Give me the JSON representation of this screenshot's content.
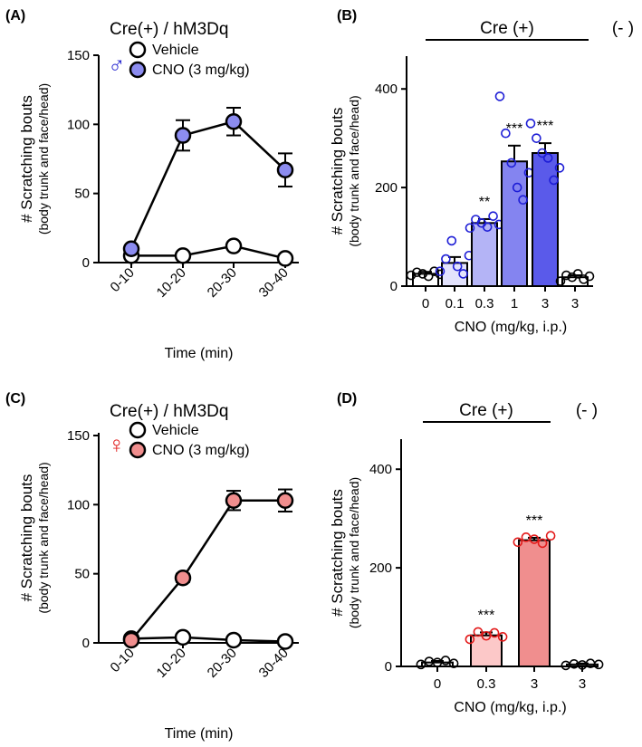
{
  "colors": {
    "male_accent": "#2a2ad0",
    "female_accent": "#e02020",
    "male_fill": "#8c8cf0",
    "female_fill": "#f08e8e",
    "vehicle_fill": "#ffffff",
    "male_points": "#1e1ed6",
    "female_points": "#e31a1a"
  },
  "chart_data": [
    {
      "panel": "(A)",
      "type": "line",
      "title": "Cre(+) / hM3Dq",
      "sex_symbol": "♂",
      "xlabel": "Time (min)",
      "ylabel": "# Scratching bouts",
      "ylabel_sub": "(body trunk and face/head)",
      "ylim": [
        0,
        150
      ],
      "yticks": [
        "0",
        "50",
        "100",
        "150"
      ],
      "categories": [
        "0-10",
        "10-20",
        "20-30",
        "30-40"
      ],
      "series": [
        {
          "name": "Vehicle",
          "values": [
            5,
            5,
            12,
            3
          ],
          "errors": [
            0,
            0,
            0,
            0
          ],
          "fill": "vehicle_fill"
        },
        {
          "name": "CNO (3 mg/kg)",
          "values": [
            10,
            92,
            102,
            67
          ],
          "errors": [
            0,
            11,
            10,
            12
          ],
          "fill": "male_fill"
        }
      ]
    },
    {
      "panel": "(B)",
      "type": "bar",
      "xlabel": "CNO (mg/kg, i.p.)",
      "ylabel": "# Scratching bouts",
      "ylabel_sub": "(body trunk and face/head)",
      "ylim": [
        0,
        450
      ],
      "yticks": [
        "0",
        "200",
        "400"
      ],
      "group_pos": "Cre (+)",
      "group_neg": "(- )",
      "categories": [
        "0",
        "0.1",
        "0.3",
        "1",
        "3",
        "3"
      ],
      "values": [
        25,
        47,
        128,
        253,
        270,
        18
      ],
      "errors": [
        4,
        12,
        8,
        32,
        20,
        4
      ],
      "fills": [
        "#ffffff",
        "#e2e2fc",
        "#b4b4f6",
        "#8484f0",
        "#5a5aea",
        "#ffffff"
      ],
      "significance": [
        "",
        "",
        "**",
        "***",
        "***",
        ""
      ],
      "points": [
        [
          22,
          28,
          25,
          20,
          30,
          24
        ],
        [
          30,
          55,
          92,
          40,
          25,
          62
        ],
        [
          118,
          135,
          128,
          120,
          142,
          125
        ],
        [
          385,
          310,
          250,
          200,
          175,
          230
        ],
        [
          330,
          300,
          270,
          260,
          215,
          240
        ],
        [
          10,
          22,
          18,
          25,
          14,
          20
        ]
      ]
    },
    {
      "panel": "(C)",
      "type": "line",
      "title": "Cre(+) / hM3Dq",
      "sex_symbol": "♀",
      "xlabel": "Time (min)",
      "ylabel": "# Scratching bouts",
      "ylabel_sub": "(body trunk and face/head)",
      "ylim": [
        0,
        150
      ],
      "yticks": [
        "0",
        "50",
        "100",
        "150"
      ],
      "categories": [
        "0-10",
        "10-20",
        "20-30",
        "30-40"
      ],
      "series": [
        {
          "name": "Vehicle",
          "values": [
            3,
            4,
            2,
            1
          ],
          "errors": [
            0,
            0,
            0,
            0
          ],
          "fill": "vehicle_fill"
        },
        {
          "name": "CNO (3 mg/kg)",
          "values": [
            2,
            47,
            103,
            103
          ],
          "errors": [
            0,
            3,
            7,
            8
          ],
          "fill": "female_fill"
        }
      ]
    },
    {
      "panel": "(D)",
      "type": "bar",
      "xlabel": "CNO (mg/kg, i.p.)",
      "ylabel": "# Scratching bouts",
      "ylabel_sub": "(body trunk and face/head)",
      "ylim": [
        0,
        450
      ],
      "yticks": [
        "0",
        "200",
        "400"
      ],
      "group_pos": "Cre (+)",
      "group_neg": "(- )",
      "categories": [
        "0",
        "0.3",
        "3",
        "3"
      ],
      "values": [
        8,
        63,
        256,
        4
      ],
      "errors": [
        3,
        6,
        5,
        2
      ],
      "fills": [
        "#ffffff",
        "#fcc8c8",
        "#f08e8e",
        "#ffffff"
      ],
      "significance": [
        "",
        "***",
        "***",
        ""
      ],
      "points": [
        [
          4,
          10,
          8,
          12,
          6
        ],
        [
          55,
          70,
          62,
          68,
          60
        ],
        [
          252,
          262,
          258,
          250,
          265
        ],
        [
          2,
          5,
          3,
          6,
          4
        ]
      ]
    }
  ]
}
